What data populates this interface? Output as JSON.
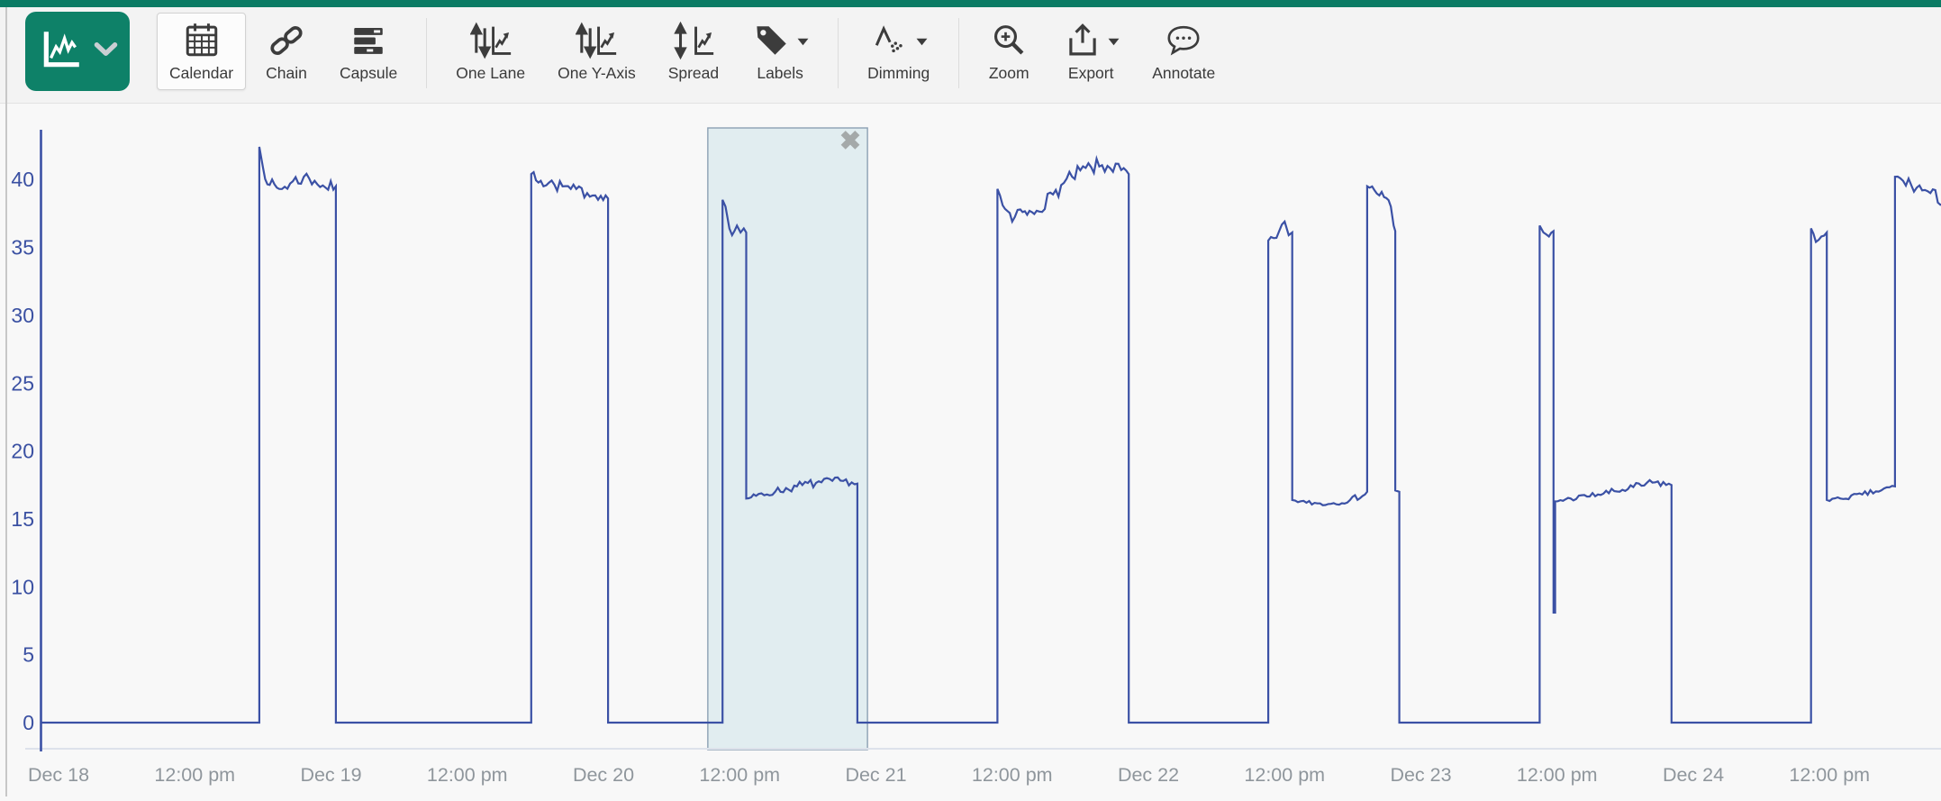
{
  "colors": {
    "top_strip": "#0b7b64",
    "brand_green": "#0e8168",
    "series_line": "#3b51a5",
    "y_tick_text": "#3a50a2",
    "x_tick_text": "#8f969c",
    "selection_fill": "#cde3e9",
    "selection_border": "#8ca0b3",
    "toolbar_icon": "#3c3c3c"
  },
  "toolbar": {
    "view_selector": {
      "icon": "trend-chart-icon",
      "chevron": "chevron-down-icon"
    },
    "buttons": [
      {
        "id": "calendar",
        "label": "Calendar",
        "icon": "calendar-icon",
        "active": true
      },
      {
        "id": "chain",
        "label": "Chain",
        "icon": "chain-icon"
      },
      {
        "id": "capsule",
        "label": "Capsule",
        "icon": "capsule-icon",
        "divider_after": true
      },
      {
        "id": "one-lane",
        "label": "One Lane",
        "icon": "arrows-trend-icon"
      },
      {
        "id": "one-y-axis",
        "label": "One Y-Axis",
        "icon": "arrows-trend-icon"
      },
      {
        "id": "spread",
        "label": "Spread",
        "icon": "spread-arrows-trend-icon"
      },
      {
        "id": "labels",
        "label": "Labels",
        "icon": "tag-icon",
        "caret": true,
        "divider_after": true
      },
      {
        "id": "dimming",
        "label": "Dimming",
        "icon": "dimming-curve-icon",
        "caret": true,
        "divider_after": true
      },
      {
        "id": "zoom",
        "label": "Zoom",
        "icon": "zoom-in-icon"
      },
      {
        "id": "export",
        "label": "Export",
        "icon": "export-icon",
        "caret": true
      },
      {
        "id": "annotate",
        "label": "Annotate",
        "icon": "speech-bubble-icon"
      }
    ]
  },
  "chart_data": {
    "type": "line",
    "title": "",
    "xlabel": "",
    "ylabel": "",
    "x_tick_labels": [
      "Dec 18",
      "12:00 pm",
      "Dec 19",
      "12:00 pm",
      "Dec 20",
      "12:00 pm",
      "Dec 21",
      "12:00 pm",
      "Dec 22",
      "12:00 pm",
      "Dec 23",
      "12:00 pm",
      "Dec 24",
      "12:00 pm"
    ],
    "y_tick_values": [
      0,
      5,
      10,
      15,
      20,
      25,
      30,
      35,
      40
    ],
    "ylim": [
      0,
      44.5
    ],
    "xlim_day_offsets": [
      -0.066,
      6.93
    ],
    "x_axis_note": "x values are day offsets from Dec 18 00:00",
    "grid": false,
    "legend": false,
    "series": [
      {
        "color": "#3b51a5",
        "points_format": [
          "day_offset",
          "value",
          "noise_amplitude"
        ],
        "points": [
          [
            -0.066,
            0,
            0
          ],
          [
            0.737,
            0,
            0
          ],
          [
            0.737,
            42.4,
            0.3
          ],
          [
            0.75,
            40.9,
            0.45
          ],
          [
            0.775,
            39.6,
            0.5
          ],
          [
            0.81,
            39.3,
            0.55
          ],
          [
            0.85,
            39.7,
            0.6
          ],
          [
            0.9,
            40.2,
            0.55
          ],
          [
            0.94,
            39.9,
            0.5
          ],
          [
            0.98,
            39.4,
            0.45
          ],
          [
            1.018,
            39.5,
            0
          ],
          [
            1.018,
            0,
            0
          ],
          [
            1.735,
            0,
            0
          ],
          [
            1.735,
            40.4,
            0.35
          ],
          [
            1.77,
            39.9,
            0.5
          ],
          [
            1.82,
            39.6,
            0.45
          ],
          [
            1.88,
            39.3,
            0.4
          ],
          [
            1.94,
            39.0,
            0.35
          ],
          [
            1.99,
            38.8,
            0.3
          ],
          [
            2.017,
            38.6,
            0
          ],
          [
            2.017,
            0,
            0
          ],
          [
            2.437,
            0,
            0
          ],
          [
            2.437,
            38.5,
            0.15
          ],
          [
            2.448,
            38.0,
            0.15
          ],
          [
            2.462,
            36.4,
            0.15
          ],
          [
            2.472,
            35.9,
            0.15
          ],
          [
            2.49,
            36.6,
            0.15
          ],
          [
            2.503,
            36.1,
            0.15
          ],
          [
            2.515,
            36.4,
            0.12
          ],
          [
            2.524,
            36.1,
            0
          ],
          [
            2.524,
            16.5,
            0.18
          ],
          [
            2.56,
            16.7,
            0.25
          ],
          [
            2.63,
            17.0,
            0.3
          ],
          [
            2.71,
            17.4,
            0.35
          ],
          [
            2.8,
            17.7,
            0.3
          ],
          [
            2.88,
            17.8,
            0.25
          ],
          [
            2.932,
            17.6,
            0
          ],
          [
            2.932,
            0,
            0
          ],
          [
            3.446,
            0,
            0
          ],
          [
            3.446,
            39.3,
            0.25
          ],
          [
            3.465,
            38.1,
            0.35
          ],
          [
            3.5,
            36.9,
            0.4
          ],
          [
            3.53,
            37.8,
            0.45
          ],
          [
            3.555,
            37.4,
            0.45
          ],
          [
            3.59,
            37.7,
            0.5
          ],
          [
            3.65,
            38.9,
            0.55
          ],
          [
            3.72,
            40.2,
            0.6
          ],
          [
            3.79,
            40.9,
            0.6
          ],
          [
            3.85,
            41.0,
            0.55
          ],
          [
            3.9,
            40.7,
            0.5
          ],
          [
            3.928,
            40.4,
            0
          ],
          [
            3.928,
            0,
            0
          ],
          [
            4.44,
            0,
            0
          ],
          [
            4.44,
            35.5,
            0.2
          ],
          [
            4.47,
            35.7,
            0.2
          ],
          [
            4.5,
            36.9,
            0.18
          ],
          [
            4.515,
            35.9,
            0.15
          ],
          [
            4.528,
            36.1,
            0
          ],
          [
            4.528,
            16.4,
            0.15
          ],
          [
            4.58,
            16.2,
            0.18
          ],
          [
            4.66,
            16.1,
            0.2
          ],
          [
            4.74,
            16.4,
            0.22
          ],
          [
            4.795,
            16.8,
            0.18
          ],
          [
            4.803,
            17.0,
            0
          ],
          [
            4.803,
            39.5,
            0.4
          ],
          [
            4.83,
            39.2,
            0.45
          ],
          [
            4.865,
            38.7,
            0.4
          ],
          [
            4.89,
            38.0,
            0.25
          ],
          [
            4.9,
            36.6,
            0.1
          ],
          [
            4.906,
            36.2,
            0
          ],
          [
            4.906,
            17.1,
            0
          ],
          [
            4.921,
            17.0,
            0
          ],
          [
            4.921,
            0,
            0
          ],
          [
            5.436,
            0,
            0
          ],
          [
            5.436,
            36.6,
            0.12
          ],
          [
            5.45,
            36.1,
            0.12
          ],
          [
            5.47,
            35.8,
            0.12
          ],
          [
            5.487,
            36.2,
            0
          ],
          [
            5.487,
            8.1,
            0
          ],
          [
            5.493,
            8.1,
            0
          ],
          [
            5.493,
            16.3,
            0.15
          ],
          [
            5.55,
            16.5,
            0.2
          ],
          [
            5.65,
            16.8,
            0.25
          ],
          [
            5.76,
            17.2,
            0.3
          ],
          [
            5.86,
            17.7,
            0.3
          ],
          [
            5.92,
            17.5,
            0
          ],
          [
            5.92,
            0,
            0
          ],
          [
            6.432,
            0,
            0
          ],
          [
            6.432,
            36.4,
            0.15
          ],
          [
            6.45,
            35.4,
            0.2
          ],
          [
            6.47,
            35.8,
            0.2
          ],
          [
            6.49,
            36.1,
            0
          ],
          [
            6.49,
            16.4,
            0.12
          ],
          [
            6.54,
            16.5,
            0.18
          ],
          [
            6.62,
            16.8,
            0.2
          ],
          [
            6.69,
            17.1,
            0.2
          ],
          [
            6.74,
            17.4,
            0
          ],
          [
            6.74,
            40.2,
            0.45
          ],
          [
            6.77,
            39.9,
            0.55
          ],
          [
            6.82,
            39.4,
            0.55
          ],
          [
            6.87,
            39.0,
            0.5
          ],
          [
            6.925,
            38.3,
            0
          ]
        ]
      }
    ],
    "selection_region": {
      "start_day_offset": 2.383,
      "end_day_offset": 2.969,
      "close_icon": "✖"
    }
  }
}
